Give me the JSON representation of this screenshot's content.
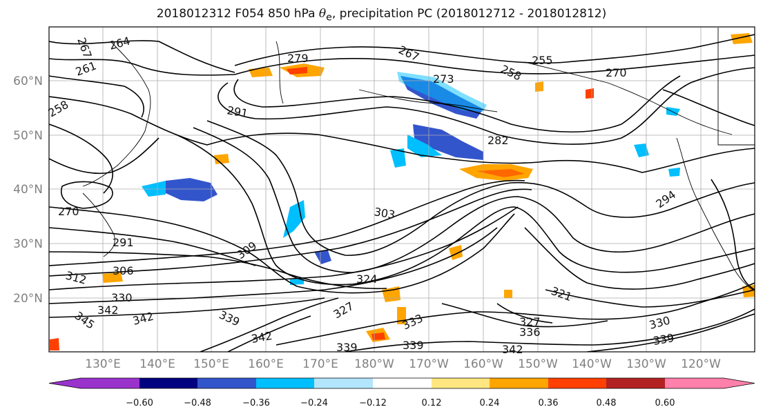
{
  "title": {
    "run": "2018012312 F054 850 hPa",
    "symbol": "θ",
    "subscript": "e",
    "rest": ", precipitation PC (2018012712 - 2018012812)"
  },
  "lat_labels": [
    "60°N",
    "50°N",
    "40°N",
    "30°N",
    "20°N"
  ],
  "lon_labels": [
    "130°E",
    "140°E",
    "150°E",
    "160°E",
    "170°E",
    "180°W",
    "170°W",
    "160°W",
    "150°W",
    "140°W",
    "130°W",
    "120°W"
  ],
  "contour_labels": [
    {
      "text": "267"
    },
    {
      "text": "264"
    },
    {
      "text": "261"
    },
    {
      "text": "258"
    },
    {
      "text": "279"
    },
    {
      "text": "267"
    },
    {
      "text": "273"
    },
    {
      "text": "255"
    },
    {
      "text": "258"
    },
    {
      "text": "270"
    },
    {
      "text": "291"
    },
    {
      "text": "282"
    },
    {
      "text": "270"
    },
    {
      "text": "303"
    },
    {
      "text": "294"
    },
    {
      "text": "291"
    },
    {
      "text": "309"
    },
    {
      "text": "306"
    },
    {
      "text": "312"
    },
    {
      "text": "324"
    },
    {
      "text": "321"
    },
    {
      "text": "330"
    },
    {
      "text": "342"
    },
    {
      "text": "345"
    },
    {
      "text": "342"
    },
    {
      "text": "339"
    },
    {
      "text": "327"
    },
    {
      "text": "333"
    },
    {
      "text": "336"
    },
    {
      "text": "342"
    },
    {
      "text": "339"
    },
    {
      "text": "339"
    },
    {
      "text": "330"
    },
    {
      "text": "339"
    },
    {
      "text": "342"
    },
    {
      "text": "327"
    }
  ],
  "colorbar": {
    "colors": [
      "#9933cc",
      "#000080",
      "#3355cc",
      "#00bfff",
      "#b3e5fc",
      "#ffffff",
      "#ffe680",
      "#ffa500",
      "#ff4000",
      "#b22222",
      "#ff80aa"
    ],
    "tick_labels": [
      "−0.60",
      "−0.48",
      "−0.36",
      "−0.24",
      "−0.12",
      "0.12",
      "0.24",
      "0.36",
      "0.48",
      "0.60"
    ]
  }
}
